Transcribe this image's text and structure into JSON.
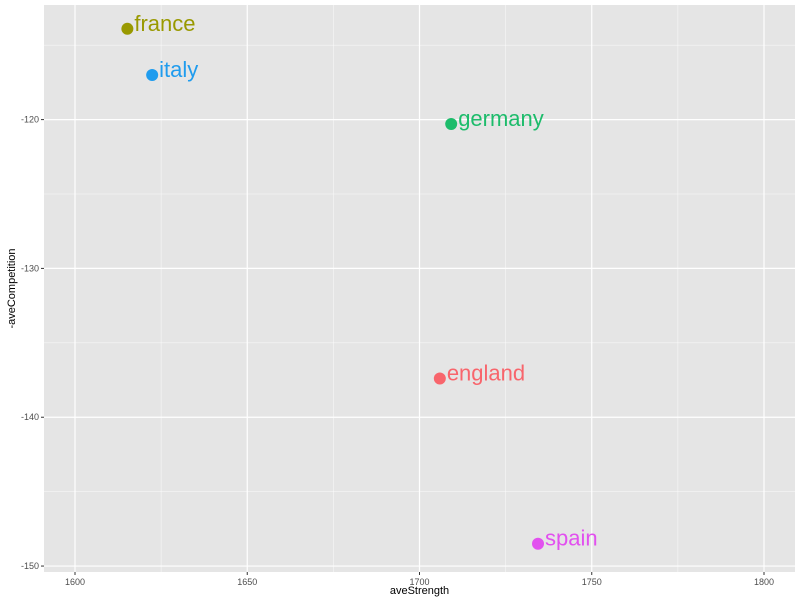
{
  "chart_data": {
    "type": "scatter",
    "xlabel": "aveStrength",
    "ylabel": "-aveCompetition",
    "xlim": [
      1591,
      1809
    ],
    "ylim": [
      -150.4,
      -112.3
    ],
    "x_ticks": [
      1600,
      1650,
      1700,
      1750,
      1800
    ],
    "y_ticks": [
      -150,
      -140,
      -130,
      -120
    ],
    "x_tick_labels": [
      "1600",
      "1650",
      "1700",
      "1750",
      "1800"
    ],
    "y_tick_labels": [
      "-150",
      "-140",
      "-130",
      "-120"
    ],
    "grid": true,
    "legend": "none",
    "points": [
      {
        "label": "france",
        "x": 1615.2,
        "y": -113.9,
        "color": "#999900"
      },
      {
        "label": "italy",
        "x": 1622.4,
        "y": -117.0,
        "color": "#1f9cee"
      },
      {
        "label": "germany",
        "x": 1709.2,
        "y": -120.3,
        "color": "#1dbc6b"
      },
      {
        "label": "england",
        "x": 1705.9,
        "y": -137.4,
        "color": "#f8656c"
      },
      {
        "label": "spain",
        "x": 1734.4,
        "y": -148.5,
        "color": "#e250ef"
      }
    ]
  },
  "colors": {
    "panel_background": "#e5e5e5",
    "grid_major": "#ffffff",
    "tick_text": "#4d4d4d",
    "axis_title": "#000000"
  }
}
